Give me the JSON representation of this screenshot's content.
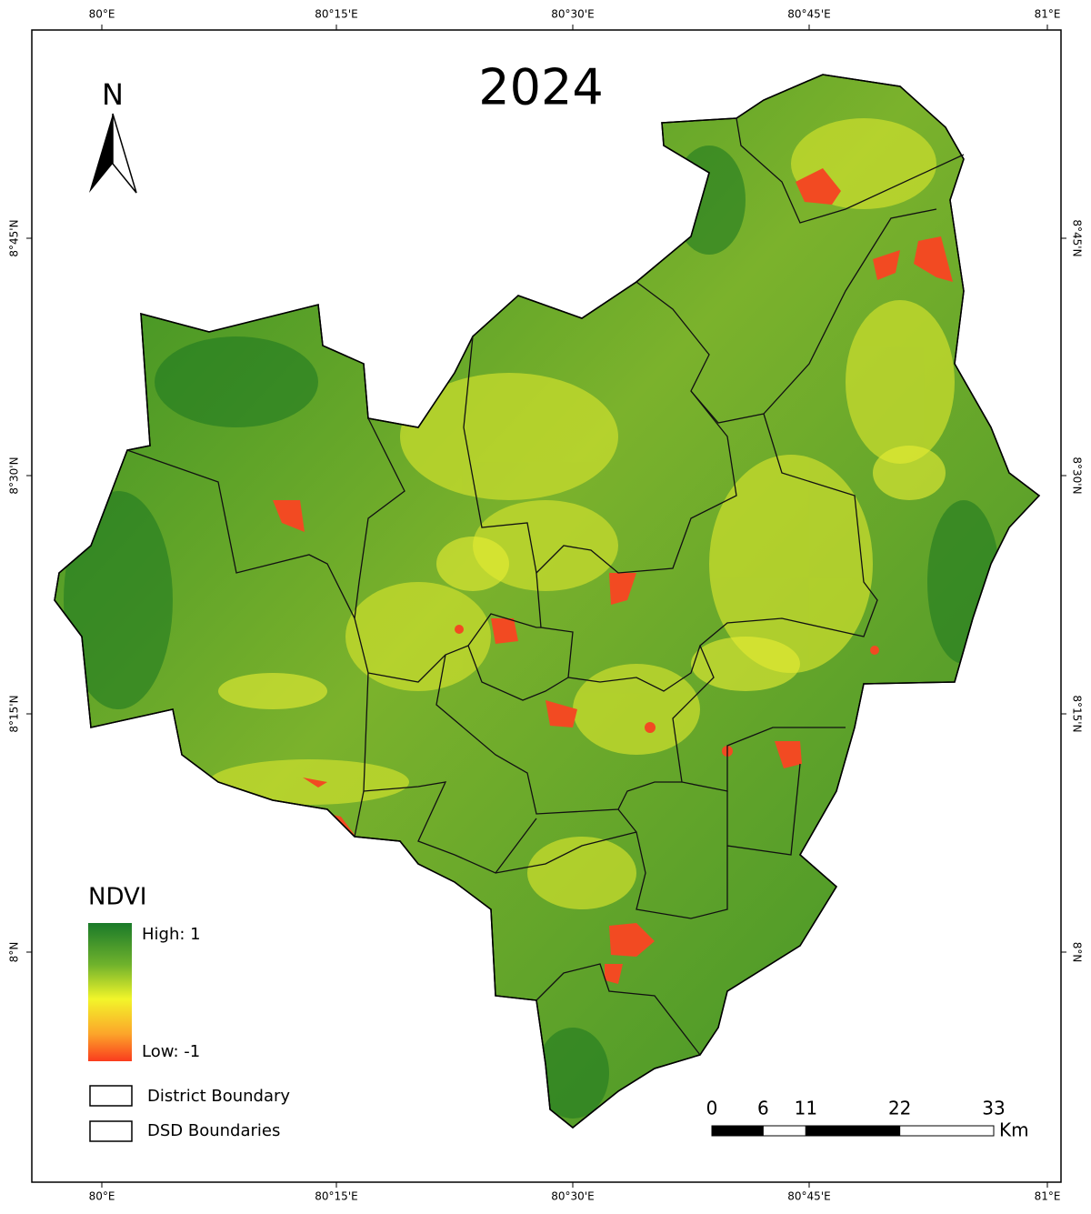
{
  "title": "2024",
  "north": "N",
  "graticule": {
    "lon": [
      "80°E",
      "80°15'E",
      "80°30'E",
      "80°45'E",
      "81°E"
    ],
    "lat": [
      "8°45'N",
      "8°30'N",
      "8°15'N",
      "8°N"
    ]
  },
  "legend": {
    "title": "NDVI",
    "high": "High: 1",
    "low": "Low: -1",
    "items": [
      "District Boundary",
      "DSD Boundaries"
    ]
  },
  "scale_bar": {
    "ticks": [
      0,
      6,
      11,
      22,
      33
    ],
    "unit": "Km"
  }
}
